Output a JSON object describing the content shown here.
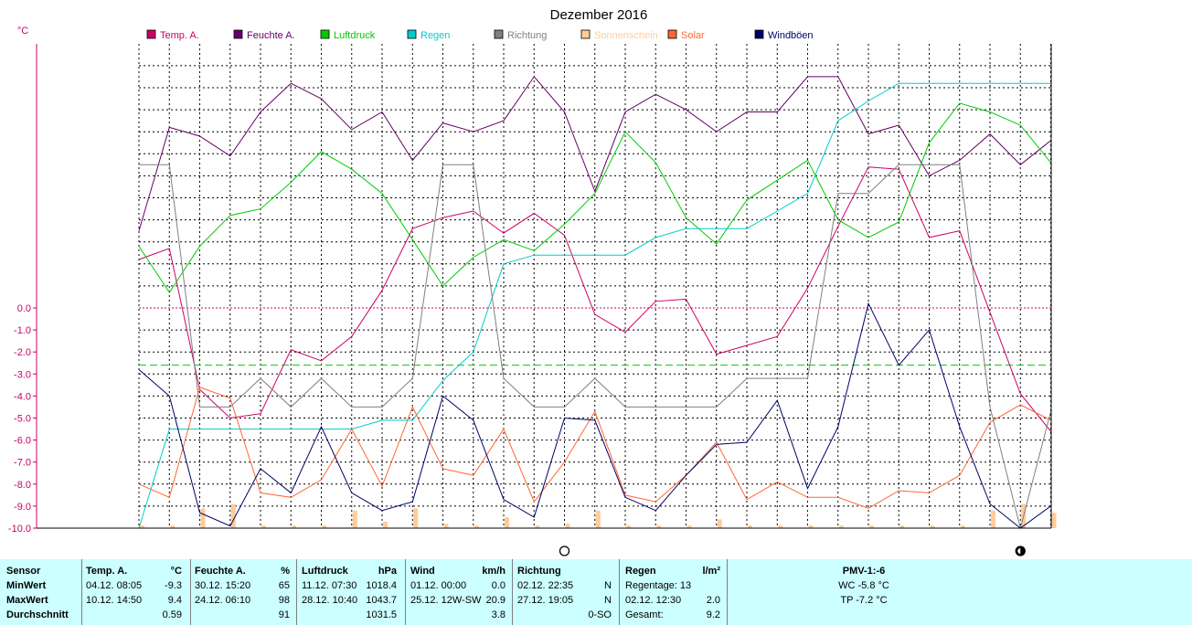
{
  "chart_data": {
    "type": "line",
    "title": "Dezember 2016",
    "ylabel": "°C",
    "ylim": [
      -10.0,
      10.0
    ],
    "y_ticks": [
      "0.0",
      "-1.0",
      "-2.0",
      "-3.0",
      "-4.0",
      "-5.0",
      "-6.0",
      "-7.0",
      "-8.0",
      "-9.0",
      "-10.0"
    ],
    "grid": true,
    "legend_position": "top",
    "x_count": 31,
    "series": [
      {
        "name": "Temp. A.",
        "color": "#cc0066",
        "values": [
          2.2,
          2.7,
          -3.7,
          -5.0,
          -4.8,
          -1.9,
          -2.4,
          -1.3,
          0.8,
          3.6,
          4.1,
          4.4,
          3.4,
          4.3,
          3.3,
          -0.3,
          -1.1,
          0.3,
          0.4,
          -2.1,
          -1.7,
          -1.3,
          0.9,
          3.7,
          6.4,
          6.3,
          3.2,
          3.5,
          -0.2,
          -3.9,
          -5.6
        ]
      },
      {
        "name": "Feuchte A.",
        "color": "#660066",
        "values": [
          3.5,
          8.2,
          7.8,
          6.9,
          8.9,
          10.2,
          9.5,
          8.1,
          8.9,
          6.7,
          8.4,
          8.0,
          8.5,
          10.5,
          8.9,
          5.3,
          8.9,
          9.7,
          9.0,
          8.0,
          8.9,
          8.9,
          10.5,
          10.5,
          7.9,
          8.3,
          6.0,
          6.7,
          7.9,
          6.5,
          7.6
        ]
      },
      {
        "name": "Luftdruck",
        "color": "#00cc00",
        "values": [
          2.8,
          0.7,
          2.8,
          4.2,
          4.5,
          5.7,
          7.1,
          6.3,
          5.2,
          3.1,
          1.0,
          2.3,
          3.1,
          2.6,
          3.8,
          5.2,
          8.0,
          6.6,
          4.1,
          2.9,
          4.9,
          5.8,
          6.7,
          4.0,
          3.2,
          3.9,
          7.5,
          9.3,
          8.9,
          8.3,
          6.6
        ]
      },
      {
        "name": "Regen",
        "color": "#00cccc",
        "values": [
          -10.0,
          -5.5,
          -5.5,
          -5.5,
          -5.5,
          -5.5,
          -5.5,
          -5.5,
          -5.1,
          -5.1,
          -3.3,
          -2.0,
          2.0,
          2.4,
          2.4,
          2.4,
          2.4,
          3.2,
          3.6,
          3.6,
          3.6,
          4.4,
          5.2,
          8.5,
          9.4,
          10.2,
          10.2,
          10.2,
          10.2,
          10.2,
          10.2
        ]
      },
      {
        "name": "Richtung",
        "color": "#808080",
        "values": [
          6.5,
          6.5,
          -4.5,
          -4.5,
          -3.2,
          -4.5,
          -3.2,
          -4.5,
          -4.5,
          -3.2,
          6.5,
          6.5,
          -3.2,
          -4.5,
          -4.5,
          -3.2,
          -4.5,
          -4.5,
          -4.5,
          -4.5,
          -3.2,
          -3.2,
          -3.2,
          5.2,
          5.2,
          6.5,
          6.5,
          6.5,
          -4.5,
          -10.0,
          -4.7
        ]
      },
      {
        "name": "Sonnenschein",
        "color": "#ffcc99",
        "values": []
      },
      {
        "name": "Solar",
        "color": "#ff6633",
        "values": [
          -8.0,
          -8.6,
          -3.6,
          -4.1,
          -8.4,
          -8.6,
          -7.8,
          -5.5,
          -8.1,
          -4.5,
          -7.3,
          -7.6,
          -5.5,
          -8.8,
          -7.0,
          -4.7,
          -8.5,
          -8.8,
          -7.6,
          -6.1,
          -8.7,
          -7.9,
          -8.6,
          -8.6,
          -9.1,
          -8.3,
          -8.4,
          -7.6,
          -5.2,
          -4.4,
          -5.1
        ]
      },
      {
        "name": "Windböen",
        "color": "#000066",
        "values": [
          -2.8,
          -4.0,
          -9.3,
          -9.9,
          -7.3,
          -8.4,
          -5.4,
          -8.4,
          -9.2,
          -8.8,
          -4.0,
          -5.1,
          -8.7,
          -9.5,
          -5.0,
          -5.1,
          -8.6,
          -9.2,
          -7.6,
          -6.2,
          -6.1,
          -4.2,
          -8.2,
          -5.4,
          0.2,
          -2.6,
          -1.0,
          -5.4,
          -8.9,
          -10.0,
          -9.0
        ]
      }
    ],
    "reference_lines": [
      {
        "value": 0.0,
        "color": "#cc0066",
        "style": "dotted"
      },
      {
        "value": -2.6,
        "color": "#00cc00",
        "style": "dashed"
      }
    ],
    "sun_bars": [
      0,
      0,
      0.9,
      1.1,
      0,
      0,
      0,
      0.8,
      0.3,
      0.9,
      0.2,
      0,
      0.5,
      0,
      0.2,
      0.8,
      0,
      0,
      0,
      0.4,
      0,
      0,
      0,
      0,
      0,
      0,
      0,
      0,
      0.8,
      1.1,
      0.7
    ],
    "moon_phases": [
      {
        "day": 14,
        "phase": "full"
      },
      {
        "day": 29,
        "phase": "new"
      }
    ]
  },
  "table": {
    "rows": [
      {
        "c0": "Sensor",
        "c1a": "Temp. A.",
        "c1b": "°C",
        "c2a": "Feuchte A.",
        "c2b": "%",
        "c3a": "Luftdruck",
        "c3b": "hPa",
        "c4a": "Wind",
        "c4b": "km/h",
        "c5a": "Richtung",
        "c5b": "",
        "c6a": "Regen",
        "c6b": "l/m²",
        "c7": "PMV-1:-6"
      },
      {
        "c0": "MinWert",
        "c1a": "04.12.  08:05",
        "c1b": "-9.3",
        "c2a": "30.12.  15:20",
        "c2b": "65",
        "c3a": "11.12.  07:30",
        "c3b": "1018.4",
        "c4a": "01.12.  00:00",
        "c4b": "0.0",
        "c5a": "02.12.  22:35",
        "c5b": "N",
        "c6a": "Regentage: 13",
        "c6b": "",
        "c7": "WC -5.8 °C"
      },
      {
        "c0": "MaxWert",
        "c1a": "10.12.  14:50",
        "c1b": "9.4",
        "c2a": "24.12.  06:10",
        "c2b": "98",
        "c3a": "28.12.  10:40",
        "c3b": "1043.7",
        "c4a": "25.12.  12W-SW",
        "c4b": "20.9",
        "c5a": "27.12.  19:05",
        "c5b": "N",
        "c6a": "02.12.  12:30",
        "c6b": "2.0",
        "c7": "TP -7.2 °C"
      },
      {
        "c0": "Durchschnitt",
        "c1a": "",
        "c1b": "0.59",
        "c2a": "",
        "c2b": "91",
        "c3a": "",
        "c3b": "1031.5",
        "c4a": "",
        "c4b": "3.8",
        "c5a": "",
        "c5b": "0-SO",
        "c6a": "Gesamt:",
        "c6b": "9.2",
        "c7": ""
      }
    ]
  }
}
